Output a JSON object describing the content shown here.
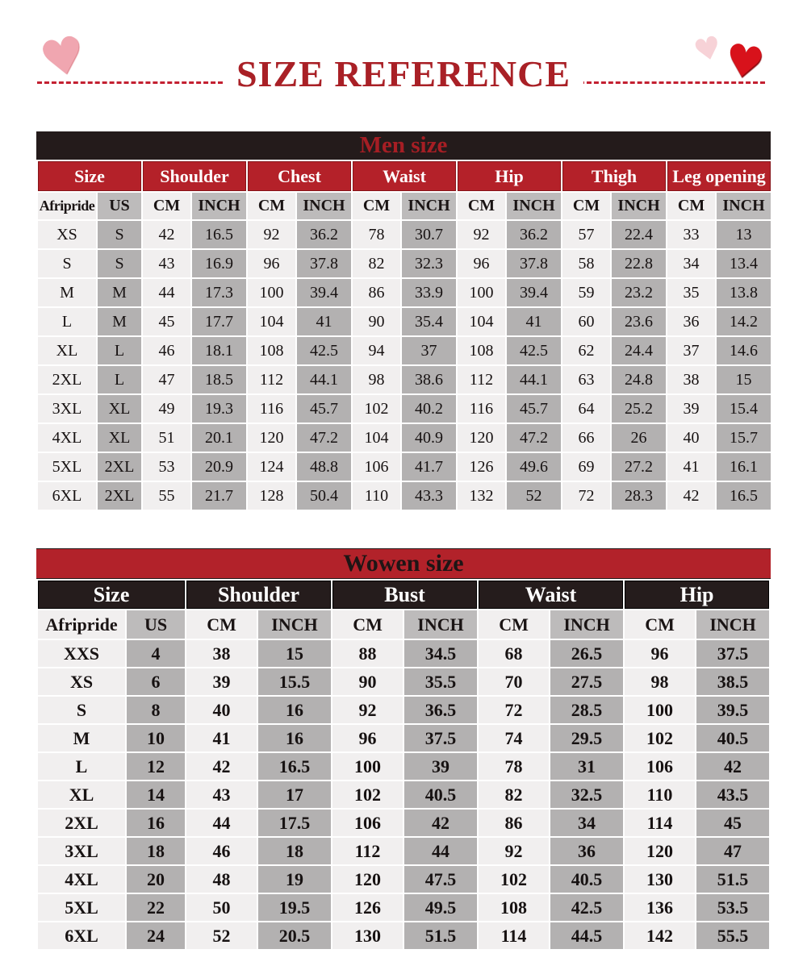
{
  "page": {
    "title": "SIZE REFERENCE"
  },
  "decorations": {
    "heart_left_icon": "♥",
    "heart_pale_icon": "♥",
    "heart_red_icon": "♥"
  },
  "colors": {
    "title_red": "#a92026",
    "dash_red": "#c32031",
    "bar_black": "#241b1b",
    "bar_red": "#b2222a",
    "cell_light": "#f1efef",
    "cell_gray": "#b3b1b1",
    "heart_pink": "#f0a6b0",
    "heart_pale": "#f7d2d7",
    "heart_red": "#d8121b"
  },
  "men_table": {
    "title": "Men size",
    "groups": [
      {
        "label": "Size"
      },
      {
        "label": "Shoulder"
      },
      {
        "label": "Chest"
      },
      {
        "label": "Waist"
      },
      {
        "label": "Hip"
      },
      {
        "label": "Thigh"
      },
      {
        "label": "Leg opening"
      }
    ],
    "subheader": [
      "Afripride",
      "US",
      "CM",
      "INCH",
      "CM",
      "INCH",
      "CM",
      "INCH",
      "CM",
      "INCH",
      "CM",
      "INCH",
      "CM",
      "INCH"
    ],
    "rows": [
      [
        "XS",
        "S",
        "42",
        "16.5",
        "92",
        "36.2",
        "78",
        "30.7",
        "92",
        "36.2",
        "57",
        "22.4",
        "33",
        "13"
      ],
      [
        "S",
        "S",
        "43",
        "16.9",
        "96",
        "37.8",
        "82",
        "32.3",
        "96",
        "37.8",
        "58",
        "22.8",
        "34",
        "13.4"
      ],
      [
        "M",
        "M",
        "44",
        "17.3",
        "100",
        "39.4",
        "86",
        "33.9",
        "100",
        "39.4",
        "59",
        "23.2",
        "35",
        "13.8"
      ],
      [
        "L",
        "M",
        "45",
        "17.7",
        "104",
        "41",
        "90",
        "35.4",
        "104",
        "41",
        "60",
        "23.6",
        "36",
        "14.2"
      ],
      [
        "XL",
        "L",
        "46",
        "18.1",
        "108",
        "42.5",
        "94",
        "37",
        "108",
        "42.5",
        "62",
        "24.4",
        "37",
        "14.6"
      ],
      [
        "2XL",
        "L",
        "47",
        "18.5",
        "112",
        "44.1",
        "98",
        "38.6",
        "112",
        "44.1",
        "63",
        "24.8",
        "38",
        "15"
      ],
      [
        "3XL",
        "XL",
        "49",
        "19.3",
        "116",
        "45.7",
        "102",
        "40.2",
        "116",
        "45.7",
        "64",
        "25.2",
        "39",
        "15.4"
      ],
      [
        "4XL",
        "XL",
        "51",
        "20.1",
        "120",
        "47.2",
        "104",
        "40.9",
        "120",
        "47.2",
        "66",
        "26",
        "40",
        "15.7"
      ],
      [
        "5XL",
        "2XL",
        "53",
        "20.9",
        "124",
        "48.8",
        "106",
        "41.7",
        "126",
        "49.6",
        "69",
        "27.2",
        "41",
        "16.1"
      ],
      [
        "6XL",
        "2XL",
        "55",
        "21.7",
        "128",
        "50.4",
        "110",
        "43.3",
        "132",
        "52",
        "72",
        "28.3",
        "42",
        "16.5"
      ]
    ]
  },
  "women_table": {
    "title": "Wowen size",
    "groups": [
      {
        "label": "Size"
      },
      {
        "label": "Shoulder"
      },
      {
        "label": "Bust"
      },
      {
        "label": "Waist"
      },
      {
        "label": "Hip"
      }
    ],
    "subheader": [
      "Afripride",
      "US",
      "CM",
      "INCH",
      "CM",
      "INCH",
      "CM",
      "INCH",
      "CM",
      "INCH"
    ],
    "rows": [
      [
        "XXS",
        "4",
        "38",
        "15",
        "88",
        "34.5",
        "68",
        "26.5",
        "96",
        "37.5"
      ],
      [
        "XS",
        "6",
        "39",
        "15.5",
        "90",
        "35.5",
        "70",
        "27.5",
        "98",
        "38.5"
      ],
      [
        "S",
        "8",
        "40",
        "16",
        "92",
        "36.5",
        "72",
        "28.5",
        "100",
        "39.5"
      ],
      [
        "M",
        "10",
        "41",
        "16",
        "96",
        "37.5",
        "74",
        "29.5",
        "102",
        "40.5"
      ],
      [
        "L",
        "12",
        "42",
        "16.5",
        "100",
        "39",
        "78",
        "31",
        "106",
        "42"
      ],
      [
        "XL",
        "14",
        "43",
        "17",
        "102",
        "40.5",
        "82",
        "32.5",
        "110",
        "43.5"
      ],
      [
        "2XL",
        "16",
        "44",
        "17.5",
        "106",
        "42",
        "86",
        "34",
        "114",
        "45"
      ],
      [
        "3XL",
        "18",
        "46",
        "18",
        "112",
        "44",
        "92",
        "36",
        "120",
        "47"
      ],
      [
        "4XL",
        "20",
        "48",
        "19",
        "120",
        "47.5",
        "102",
        "40.5",
        "130",
        "51.5"
      ],
      [
        "5XL",
        "22",
        "50",
        "19.5",
        "126",
        "49.5",
        "108",
        "42.5",
        "136",
        "53.5"
      ],
      [
        "6XL",
        "24",
        "52",
        "20.5",
        "130",
        "51.5",
        "114",
        "44.5",
        "142",
        "55.5"
      ]
    ]
  }
}
